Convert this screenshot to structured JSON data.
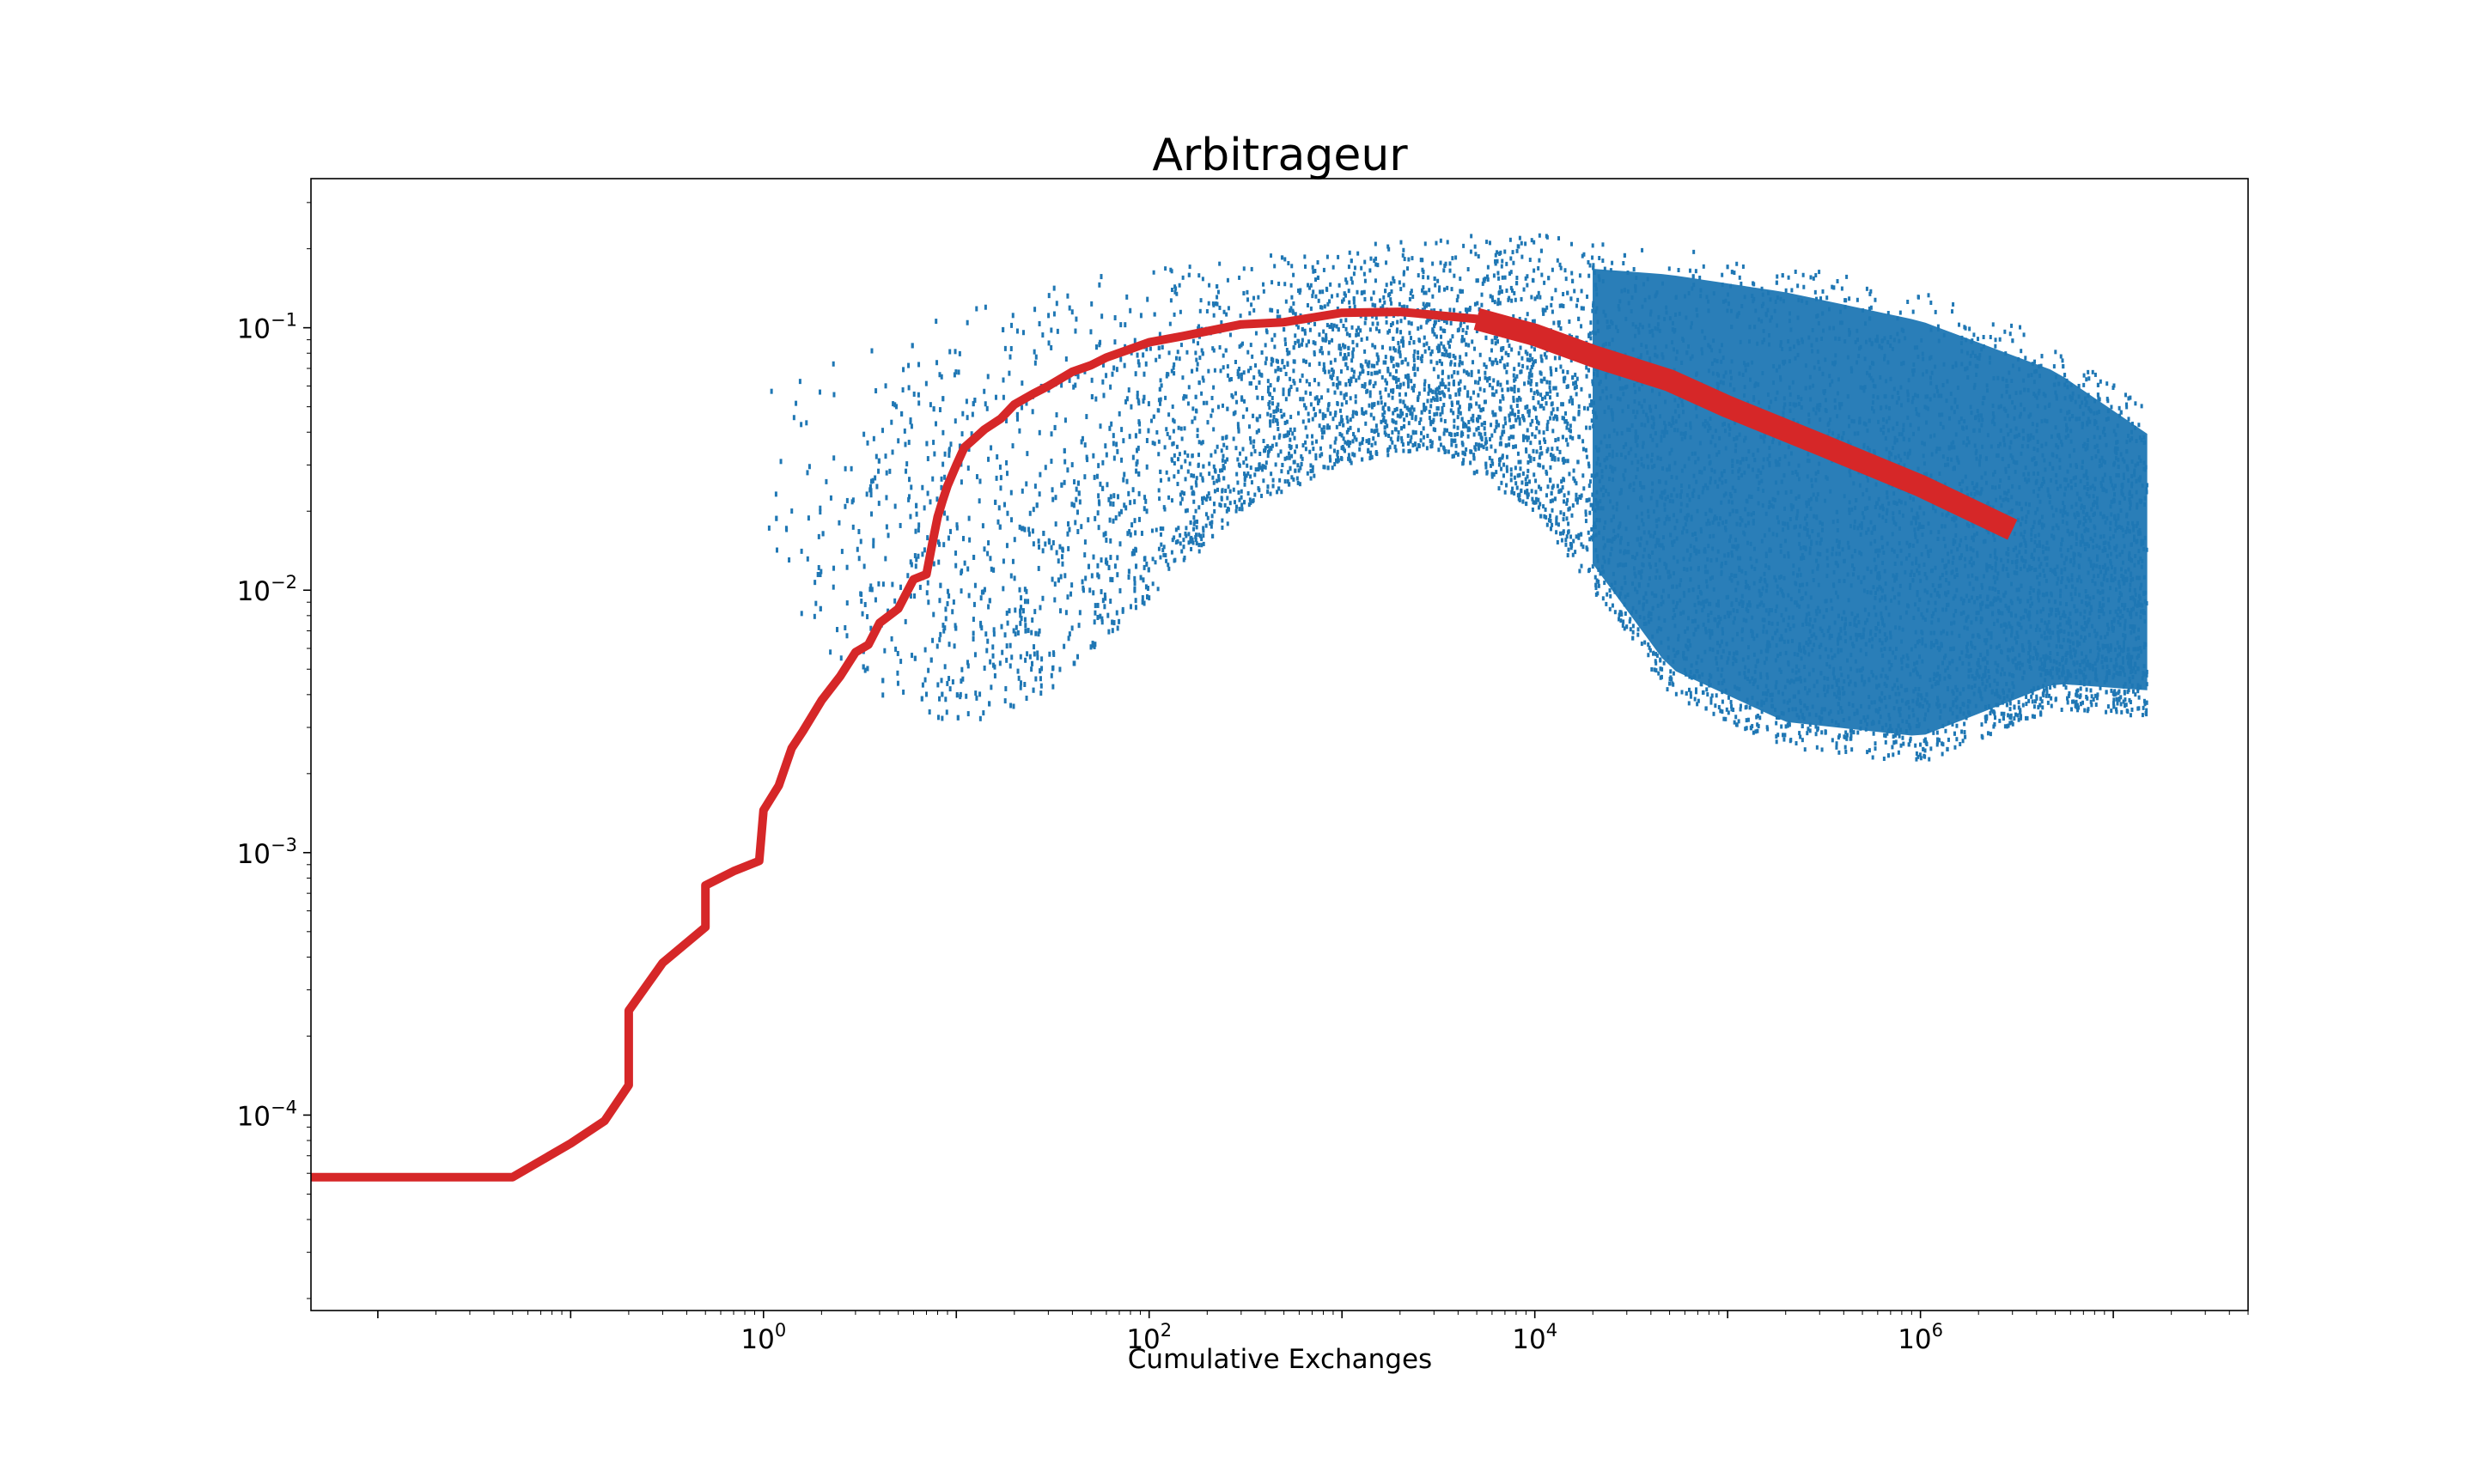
{
  "chart_data": {
    "type": "scatter",
    "title": "Arbitrageur",
    "xlabel": "Cumulative Exchanges",
    "ylabel": "",
    "xscale": "log",
    "yscale": "log",
    "xlim": [
      0.0045,
      50000000
    ],
    "ylim": [
      1.8e-05,
      0.37
    ],
    "grid": false,
    "x_ticks": [
      {
        "value": 1,
        "base": "10",
        "exp": "0"
      },
      {
        "value": 100,
        "base": "10",
        "exp": "2"
      },
      {
        "value": 10000,
        "base": "10",
        "exp": "4"
      },
      {
        "value": 1000000,
        "base": "10",
        "exp": "6"
      }
    ],
    "y_ticks": [
      {
        "value": 0.0001,
        "base": "10",
        "exp": "−4"
      },
      {
        "value": 0.001,
        "base": "10",
        "exp": "−3"
      },
      {
        "value": 0.01,
        "base": "10",
        "exp": "−2"
      },
      {
        "value": 0.1,
        "base": "10",
        "exp": "−1"
      }
    ],
    "series": [
      {
        "kind": "scatter",
        "color": "#1f77b4",
        "description_of_extent": "dense cloud of individual points",
        "envelope": [
          {
            "x": 1,
            "upper": 0.062,
            "lower": 0.013
          },
          {
            "x": 2,
            "upper": 0.083,
            "lower": 0.006
          },
          {
            "x": 5,
            "upper": 0.1,
            "lower": 0.0035
          },
          {
            "x": 10,
            "upper": 0.12,
            "lower": 0.003
          },
          {
            "x": 30,
            "upper": 0.15,
            "lower": 0.004
          },
          {
            "x": 100,
            "upper": 0.17,
            "lower": 0.009
          },
          {
            "x": 300,
            "upper": 0.19,
            "lower": 0.02
          },
          {
            "x": 1000,
            "upper": 0.21,
            "lower": 0.03
          },
          {
            "x": 3000,
            "upper": 0.22,
            "lower": 0.035
          },
          {
            "x": 10000,
            "upper": 0.23,
            "lower": 0.02
          },
          {
            "x": 50000,
            "upper": 0.21,
            "lower": 0.004
          },
          {
            "x": 200000,
            "upper": 0.18,
            "lower": 0.0025
          },
          {
            "x": 1000000,
            "upper": 0.14,
            "lower": 0.0022
          },
          {
            "x": 5000000,
            "upper": 0.09,
            "lower": 0.0035
          },
          {
            "x": 15000000,
            "upper": 0.052,
            "lower": 0.0033
          }
        ]
      },
      {
        "kind": "line",
        "color": "#d62728",
        "x": [
          0.0045,
          0.05,
          0.1,
          0.15,
          0.2,
          0.2,
          0.3,
          0.5,
          0.5,
          0.7,
          0.95,
          1,
          1.2,
          1.4,
          1.6,
          2,
          2.5,
          3,
          3.5,
          4,
          5,
          6,
          7,
          7.5,
          8,
          8.5,
          9,
          10,
          11,
          12,
          14,
          17,
          20,
          25,
          30,
          40,
          50,
          60,
          80,
          100,
          150,
          200,
          300,
          500,
          1000,
          2000,
          5000,
          10000,
          20000,
          50000,
          100000,
          300000,
          1000000,
          3000000
        ],
        "y": [
          5.8e-05,
          5.8e-05,
          7.8e-05,
          9.5e-05,
          0.00013,
          0.00025,
          0.00038,
          0.00052,
          0.00075,
          0.00085,
          0.00093,
          0.00145,
          0.0018,
          0.0025,
          0.0029,
          0.0038,
          0.0047,
          0.0058,
          0.0062,
          0.0075,
          0.0085,
          0.011,
          0.0115,
          0.015,
          0.019,
          0.022,
          0.025,
          0.03,
          0.035,
          0.037,
          0.041,
          0.045,
          0.051,
          0.056,
          0.06,
          0.068,
          0.072,
          0.077,
          0.083,
          0.088,
          0.093,
          0.097,
          0.103,
          0.105,
          0.114,
          0.115,
          0.108,
          0.094,
          0.078,
          0.063,
          0.05,
          0.036,
          0.025,
          0.017
        ]
      }
    ]
  }
}
